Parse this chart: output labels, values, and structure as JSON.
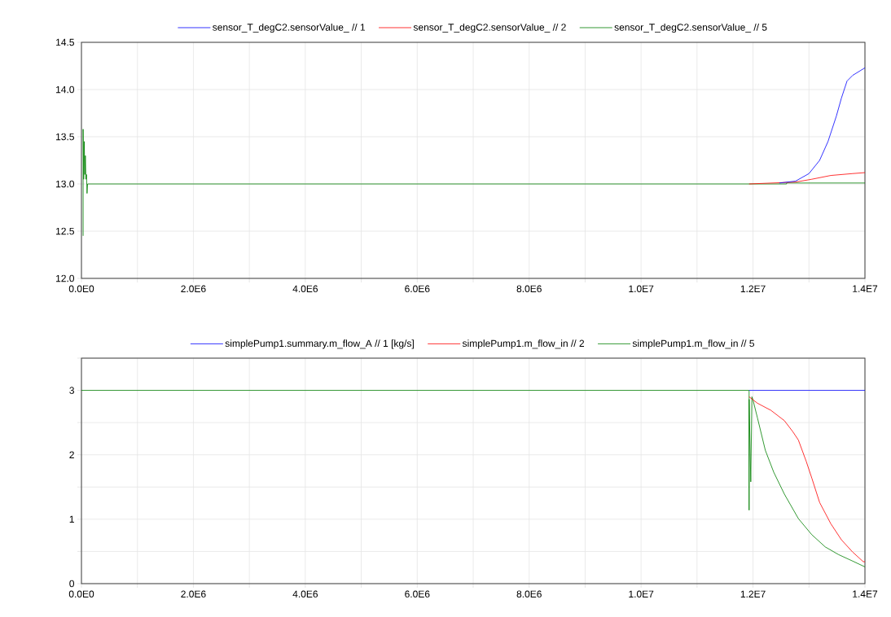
{
  "chart_data": [
    {
      "type": "line",
      "legend": "top",
      "grid": true,
      "xlim": [
        0,
        14000000
      ],
      "ylim": [
        12,
        14.5
      ],
      "xticks": [
        {
          "value": 0,
          "label": "0.0E0"
        },
        {
          "value": 1000000,
          "label": null
        },
        {
          "value": 2000000,
          "label": "2.0E6"
        },
        {
          "value": 3000000,
          "label": null
        },
        {
          "value": 4000000,
          "label": "4.0E6"
        },
        {
          "value": 5000000,
          "label": null
        },
        {
          "value": 6000000,
          "label": "6.0E6"
        },
        {
          "value": 7000000,
          "label": null
        },
        {
          "value": 8000000,
          "label": "8.0E6"
        },
        {
          "value": 9000000,
          "label": null
        },
        {
          "value": 10000000,
          "label": "1.0E7"
        },
        {
          "value": 11000000,
          "label": null
        },
        {
          "value": 12000000,
          "label": "1.2E7"
        },
        {
          "value": 13000000,
          "label": null
        },
        {
          "value": 14000000,
          "label": "1.4E7"
        }
      ],
      "yticks": [
        {
          "value": 12,
          "label": "12.0"
        },
        {
          "value": 12.5,
          "label": "12.5"
        },
        {
          "value": 13,
          "label": "13.0"
        },
        {
          "value": 13.5,
          "label": "13.5"
        },
        {
          "value": 14,
          "label": "14.0"
        },
        {
          "value": 14.5,
          "label": "14.5"
        }
      ],
      "series": [
        {
          "name": "sensor_T_degC2.sensorValue_ // 1",
          "color": "#0000ff",
          "x": [
            12470000,
            12760000,
            13000000,
            13190000,
            13340000,
            13490000,
            13580000,
            13680000,
            13780000,
            14000000
          ],
          "values": [
            13.01,
            13.03,
            13.11,
            13.25,
            13.45,
            13.72,
            13.91,
            14.09,
            14.15,
            14.23
          ]
        },
        {
          "name": "sensor_T_degC2.sensorValue_ // 2",
          "color": "#ff0000",
          "x": [
            11930000,
            12760000,
            13050000,
            13390000,
            13780000,
            14000000
          ],
          "values": [
            13.0,
            13.02,
            13.05,
            13.09,
            13.11,
            13.12
          ]
        },
        {
          "name": "sensor_T_degC2.sensorValue_ // 5",
          "color": "#008000",
          "x": [
            30000,
            30000,
            40000,
            50000,
            60000,
            70000,
            80000,
            90000,
            100000,
            110000,
            12600000,
            12600000,
            14000000
          ],
          "values": [
            12.45,
            13.58,
            13.05,
            13.45,
            13.1,
            13.3,
            13.05,
            13.1,
            12.9,
            13.0,
            13.0,
            13.01,
            13.01
          ]
        }
      ]
    },
    {
      "type": "line",
      "legend": "top",
      "grid": true,
      "xlim": [
        0,
        14000000
      ],
      "ylim": [
        0,
        3.5
      ],
      "xticks": [
        {
          "value": 0,
          "label": "0.0E0"
        },
        {
          "value": 1000000,
          "label": null
        },
        {
          "value": 2000000,
          "label": "2.0E6"
        },
        {
          "value": 3000000,
          "label": null
        },
        {
          "value": 4000000,
          "label": "4.0E6"
        },
        {
          "value": 5000000,
          "label": null
        },
        {
          "value": 6000000,
          "label": "6.0E6"
        },
        {
          "value": 7000000,
          "label": null
        },
        {
          "value": 8000000,
          "label": "8.0E6"
        },
        {
          "value": 9000000,
          "label": null
        },
        {
          "value": 10000000,
          "label": "1.0E7"
        },
        {
          "value": 11000000,
          "label": null
        },
        {
          "value": 12000000,
          "label": "1.2E7"
        },
        {
          "value": 13000000,
          "label": null
        },
        {
          "value": 14000000,
          "label": "1.4E7"
        }
      ],
      "yticks": [
        0,
        {
          "value": 0.5,
          "label": null
        },
        1,
        {
          "value": 1.5,
          "label": null
        },
        2,
        {
          "value": 2.5,
          "label": null
        },
        3,
        {
          "value": 3.5,
          "label": null
        }
      ],
      "series": [
        {
          "name": "simplePump1.summary.m_flow_A // 1 [kg/s]",
          "color": "#0000ff",
          "x": [
            11930000,
            14000000
          ],
          "values": [
            3,
            3
          ]
        },
        {
          "name": "simplePump1.m_flow_in // 2",
          "color": "#ff0000",
          "x": [
            11930000,
            12080000,
            12320000,
            12560000,
            12710000,
            12810000,
            12950000,
            13050000,
            13190000,
            13390000,
            13580000,
            13780000,
            13970000,
            14000000
          ],
          "values": [
            2.9,
            2.8,
            2.69,
            2.53,
            2.36,
            2.23,
            1.9,
            1.64,
            1.26,
            0.93,
            0.68,
            0.49,
            0.34,
            0.34
          ]
        },
        {
          "name": "simplePump1.m_flow_in // 5",
          "color": "#008000",
          "x": [
            0,
            11930000,
            11930000,
            11930000,
            11960000,
            11980000,
            12000000,
            12080000,
            12220000,
            12370000,
            12560000,
            12810000,
            13050000,
            13290000,
            13530000,
            13780000,
            14000000
          ],
          "values": [
            3,
            3,
            1.14,
            2.86,
            1.58,
            2.9,
            2.85,
            2.57,
            2.07,
            1.73,
            1.39,
            1.01,
            0.76,
            0.57,
            0.45,
            0.35,
            0.26
          ]
        }
      ]
    }
  ]
}
